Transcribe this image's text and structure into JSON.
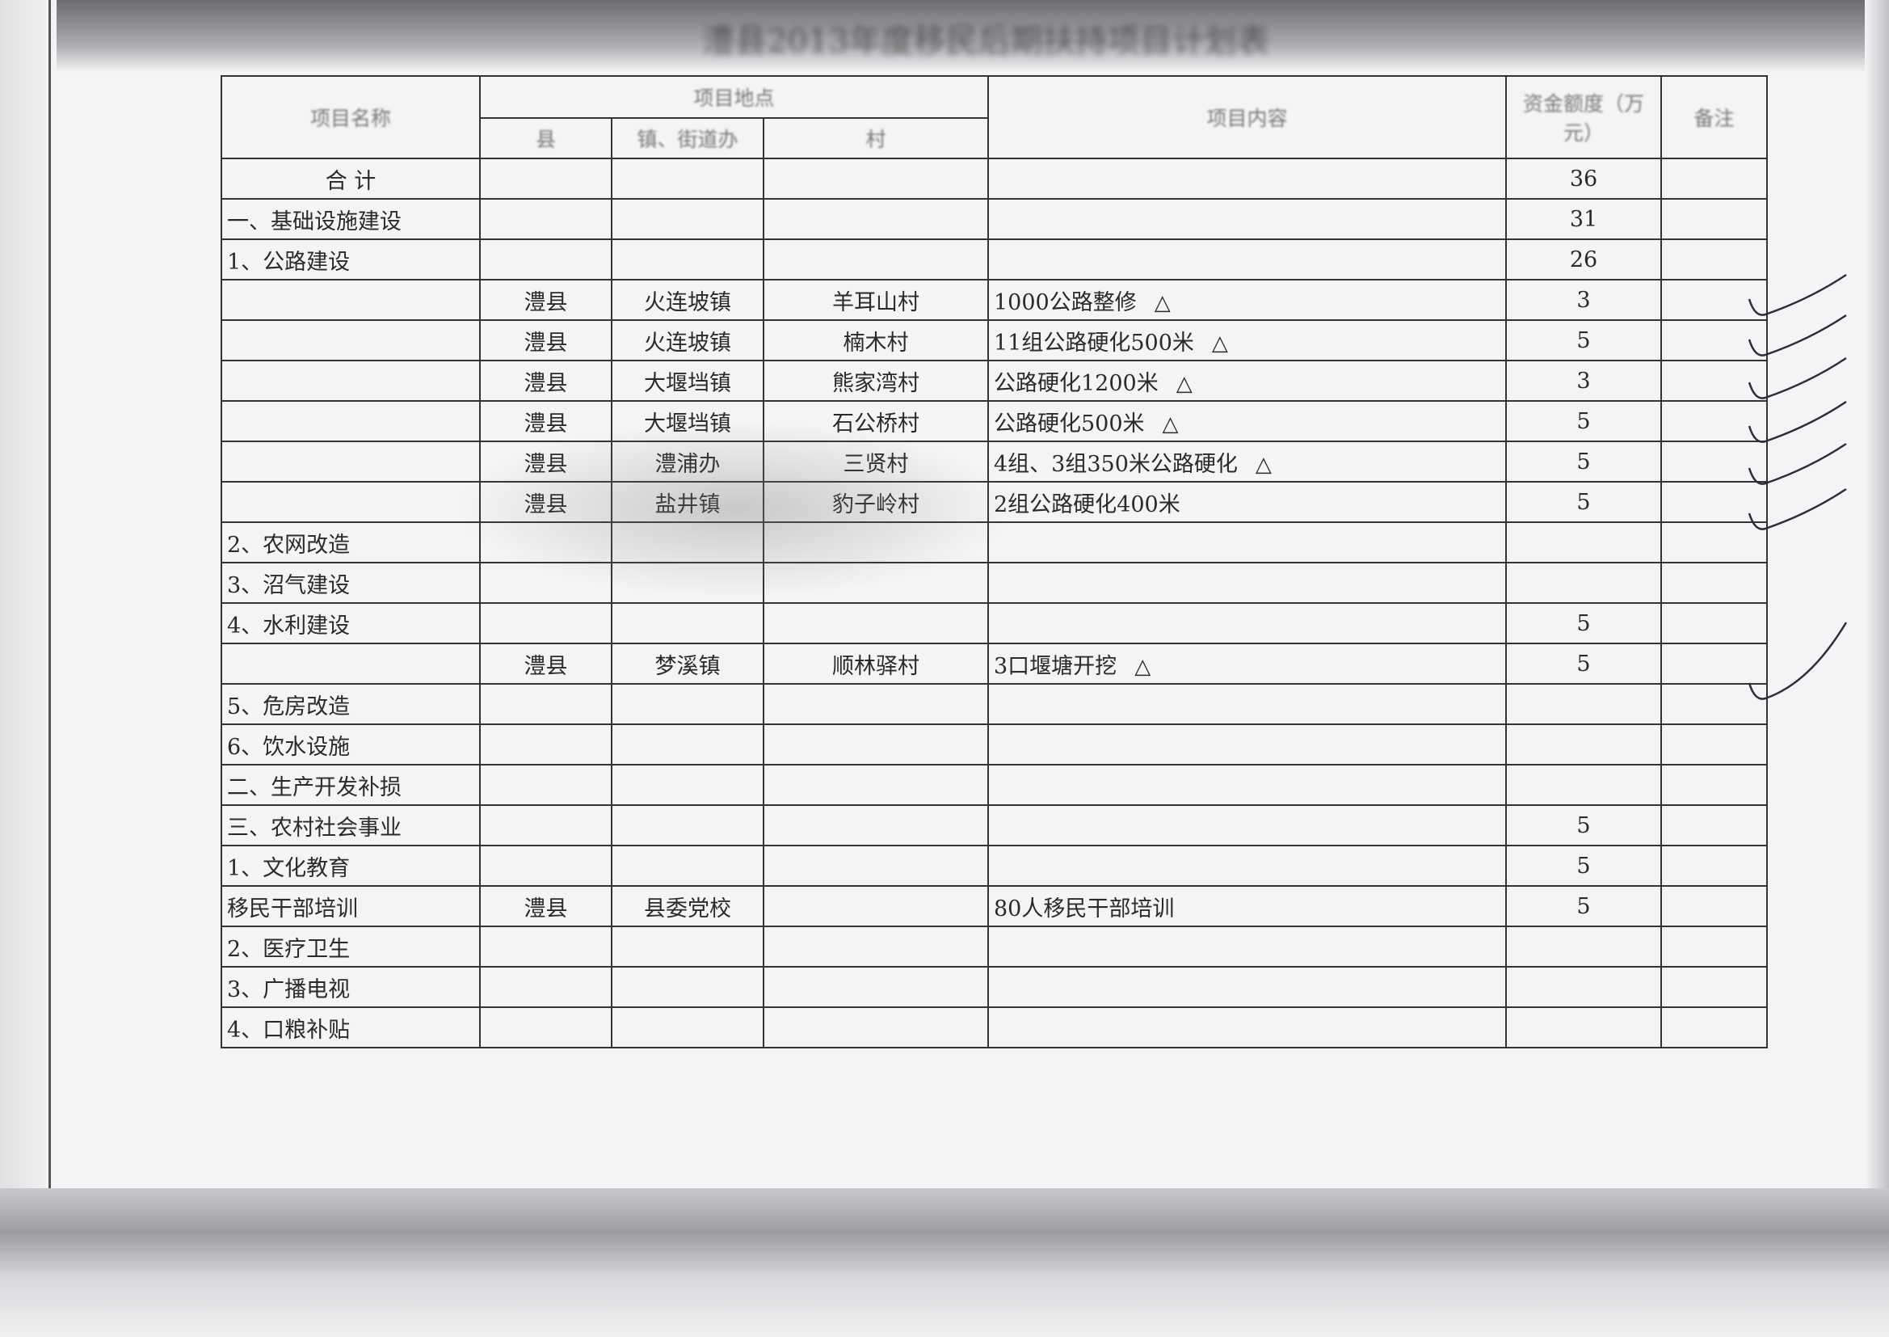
{
  "title": "澧县2013年度移民后期扶持项目计划表",
  "headers": {
    "name": "项目名称",
    "location": "项目地点",
    "county": "县",
    "town": "镇、街道办",
    "village": "村",
    "content": "项目内容",
    "amount": "资金额度（万元）",
    "remark": "备注"
  },
  "rows": [
    {
      "name": "合 计",
      "county": "",
      "town": "",
      "village": "",
      "content": "",
      "amount": "36",
      "mark": false,
      "center": true
    },
    {
      "name": "一、基础设施建设",
      "county": "",
      "town": "",
      "village": "",
      "content": "",
      "amount": "31",
      "mark": false
    },
    {
      "name": "1、公路建设",
      "county": "",
      "town": "",
      "village": "",
      "content": "",
      "amount": "26",
      "mark": false
    },
    {
      "name": "",
      "county": "澧县",
      "town": "火连坡镇",
      "village": "羊耳山村",
      "content": "1000公路整修",
      "amount": "3",
      "mark": true
    },
    {
      "name": "",
      "county": "澧县",
      "town": "火连坡镇",
      "village": "楠木村",
      "content": "11组公路硬化500米",
      "amount": "5",
      "mark": true
    },
    {
      "name": "",
      "county": "澧县",
      "town": "大堰垱镇",
      "village": "熊家湾村",
      "content": "公路硬化1200米",
      "amount": "3",
      "mark": true
    },
    {
      "name": "",
      "county": "澧县",
      "town": "大堰垱镇",
      "village": "石公桥村",
      "content": "公路硬化500米",
      "amount": "5",
      "mark": true
    },
    {
      "name": "",
      "county": "澧县",
      "town": "澧浦办",
      "village": "三贤村",
      "content": "4组、3组350米公路硬化",
      "amount": "5",
      "mark": true
    },
    {
      "name": "",
      "county": "澧县",
      "town": "盐井镇",
      "village": "豹子岭村",
      "content": "2组公路硬化400米",
      "amount": "5",
      "mark": false
    },
    {
      "name": "2、农网改造",
      "county": "",
      "town": "",
      "village": "",
      "content": "",
      "amount": "",
      "mark": false
    },
    {
      "name": "3、沼气建设",
      "county": "",
      "town": "",
      "village": "",
      "content": "",
      "amount": "",
      "mark": false
    },
    {
      "name": "4、水利建设",
      "county": "",
      "town": "",
      "village": "",
      "content": "",
      "amount": "5",
      "mark": false
    },
    {
      "name": "",
      "county": "澧县",
      "town": "梦溪镇",
      "village": "顺林驿村",
      "content": "3口堰塘开挖",
      "amount": "5",
      "mark": true
    },
    {
      "name": "5、危房改造",
      "county": "",
      "town": "",
      "village": "",
      "content": "",
      "amount": "",
      "mark": false
    },
    {
      "name": "6、饮水设施",
      "county": "",
      "town": "",
      "village": "",
      "content": "",
      "amount": "",
      "mark": false
    },
    {
      "name": "二、生产开发补损",
      "county": "",
      "town": "",
      "village": "",
      "content": "",
      "amount": "",
      "mark": false
    },
    {
      "name": "三、农村社会事业",
      "county": "",
      "town": "",
      "village": "",
      "content": "",
      "amount": "5",
      "mark": false
    },
    {
      "name": "1、文化教育",
      "county": "",
      "town": "",
      "village": "",
      "content": "",
      "amount": "5",
      "mark": false
    },
    {
      "name": "移民干部培训",
      "county": "澧县",
      "town": "县委党校",
      "village": "",
      "content": "80人移民干部培训",
      "amount": "5",
      "mark": false
    },
    {
      "name": "2、医疗卫生",
      "county": "",
      "town": "",
      "village": "",
      "content": "",
      "amount": "",
      "mark": false
    },
    {
      "name": "3、广播电视",
      "county": "",
      "town": "",
      "village": "",
      "content": "",
      "amount": "",
      "mark": false
    },
    {
      "name": "4、口粮补贴",
      "county": "",
      "town": "",
      "village": "",
      "content": "",
      "amount": "",
      "mark": false
    }
  ],
  "icons": {
    "mark": "triangle-mark-icon",
    "check": "handwritten-check-icon"
  }
}
